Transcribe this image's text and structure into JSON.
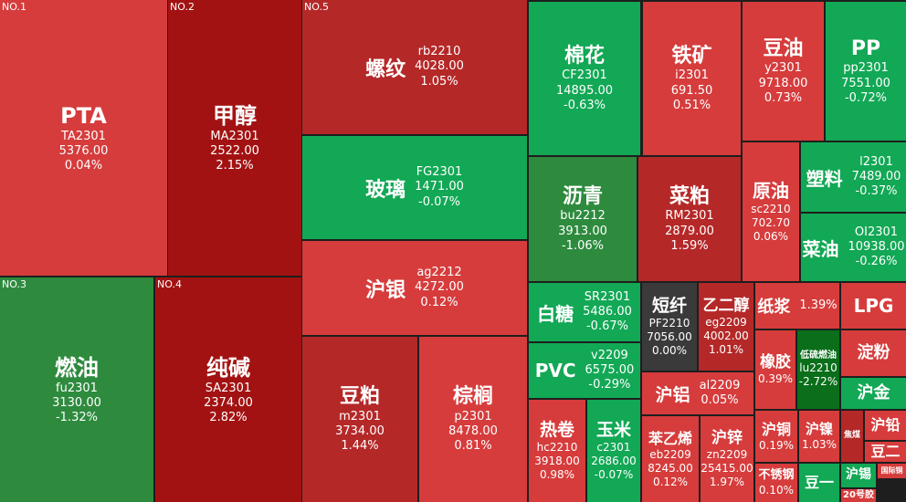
{
  "tiles": [
    {
      "rank": "NO.1",
      "name": "PTA",
      "code": "TA2301",
      "price": "5376.00",
      "change": "0.04%"
    },
    {
      "rank": "NO.2",
      "name": "甲醇",
      "code": "MA2301",
      "price": "2522.00",
      "change": "2.15%"
    },
    {
      "rank": "NO.3",
      "name": "燃油",
      "code": "fu2301",
      "price": "3130.00",
      "change": "-1.32%"
    },
    {
      "rank": "NO.4",
      "name": "纯碱",
      "code": "SA2301",
      "price": "2374.00",
      "change": "2.82%"
    },
    {
      "rank": "NO.5",
      "name": "螺纹",
      "code": "rb2210",
      "price": "4028.00",
      "change": "1.05%"
    },
    {
      "name": "玻璃",
      "code": "FG2301",
      "price": "1471.00",
      "change": "-0.07%"
    },
    {
      "name": "沪银",
      "code": "ag2212",
      "price": "4272.00",
      "change": "0.12%"
    },
    {
      "name": "豆粕",
      "code": "m2301",
      "price": "3734.00",
      "change": "1.44%"
    },
    {
      "name": "棕榈",
      "code": "p2301",
      "price": "8478.00",
      "change": "0.81%"
    },
    {
      "name": "棉花",
      "code": "CF2301",
      "price": "14895.00",
      "change": "-0.63%"
    },
    {
      "name": "铁矿",
      "code": "i2301",
      "price": "691.50",
      "change": "0.51%"
    },
    {
      "name": "豆油",
      "code": "y2301",
      "price": "9718.00",
      "change": "0.73%"
    },
    {
      "name": "PP",
      "code": "pp2301",
      "price": "7551.00",
      "change": "-0.72%"
    },
    {
      "name": "沥青",
      "code": "bu2212",
      "price": "3913.00",
      "change": "-1.06%"
    },
    {
      "name": "菜粕",
      "code": "RM2301",
      "price": "2879.00",
      "change": "1.59%"
    },
    {
      "name": "原油",
      "code": "sc2210",
      "price": "702.70",
      "change": "0.06%"
    },
    {
      "name": "塑料",
      "code": "l2301",
      "price": "7489.00",
      "change": "-0.37%"
    },
    {
      "name": "菜油",
      "code": "OI2301",
      "price": "10938.00",
      "change": "-0.26%"
    },
    {
      "name": "白糖",
      "code": "SR2301",
      "price": "5486.00",
      "change": "-0.67%"
    },
    {
      "name": "PVC",
      "code": "v2209",
      "price": "6575.00",
      "change": "-0.29%"
    },
    {
      "name": "短纤",
      "code": "PF2210",
      "price": "7056.00",
      "change": "0.00%"
    },
    {
      "name": "乙二醇",
      "code": "eg2209",
      "price": "4002.00",
      "change": "1.01%"
    },
    {
      "name": "沪铝",
      "code": "al2209",
      "change": "0.05%"
    },
    {
      "name": "热卷",
      "code": "hc2210",
      "price": "3918.00",
      "change": "0.98%"
    },
    {
      "name": "玉米",
      "code": "c2301",
      "price": "2686.00",
      "change": "-0.07%"
    },
    {
      "name": "苯乙烯",
      "code": "eb2209",
      "price": "8245.00",
      "change": "0.12%"
    },
    {
      "name": "沪锌",
      "code": "zn2209",
      "price": "25415.00",
      "change": "1.97%"
    },
    {
      "name": "纸浆",
      "change": "1.39%"
    },
    {
      "name": "LPG"
    },
    {
      "name": "橡胶",
      "change": "0.39%"
    },
    {
      "name": "低硫燃油",
      "code": "lu2210",
      "change": "-2.72%"
    },
    {
      "name": "淀粉"
    },
    {
      "name": "沪金"
    },
    {
      "name": "沪铜",
      "change": "0.19%"
    },
    {
      "name": "沪镍",
      "change": "1.03%"
    },
    {
      "name": "焦煤"
    },
    {
      "name": "沪铅"
    },
    {
      "name": "豆二"
    },
    {
      "name": "不锈钢",
      "change": "0.10%"
    },
    {
      "name": "豆一"
    },
    {
      "name": "沪锡"
    },
    {
      "name": "20号胶"
    },
    {
      "name": "国际铜"
    }
  ]
}
